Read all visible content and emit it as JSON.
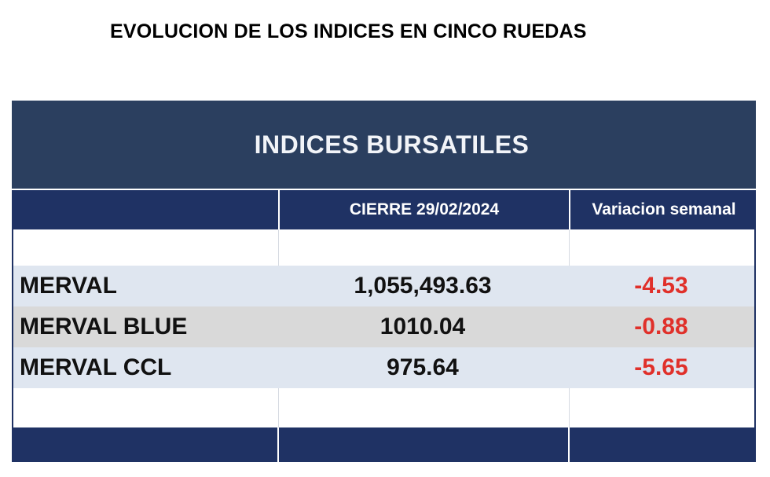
{
  "title": "EVOLUCION DE LOS INDICES EN CINCO RUEDAS",
  "table": {
    "banner": "INDICES BURSATILES",
    "headers": {
      "name": "",
      "cierre": "CIERRE 29/02/2024",
      "variacion": "Variacion semanal"
    },
    "rows": [
      {
        "name": "MERVAL",
        "cierre": "1,055,493.63",
        "variacion": "-4.53"
      },
      {
        "name": "MERVAL BLUE",
        "cierre": "1010.04",
        "variacion": "-0.88"
      },
      {
        "name": "MERVAL CCL",
        "cierre": "975.64",
        "variacion": "-5.65"
      }
    ]
  },
  "colors": {
    "banner_bg": "#2b3f5f",
    "header_bg": "#1f3264",
    "row_light_blue": "#dfe6f0",
    "row_gray": "#d9d9d9",
    "negative": "#e0302a"
  }
}
